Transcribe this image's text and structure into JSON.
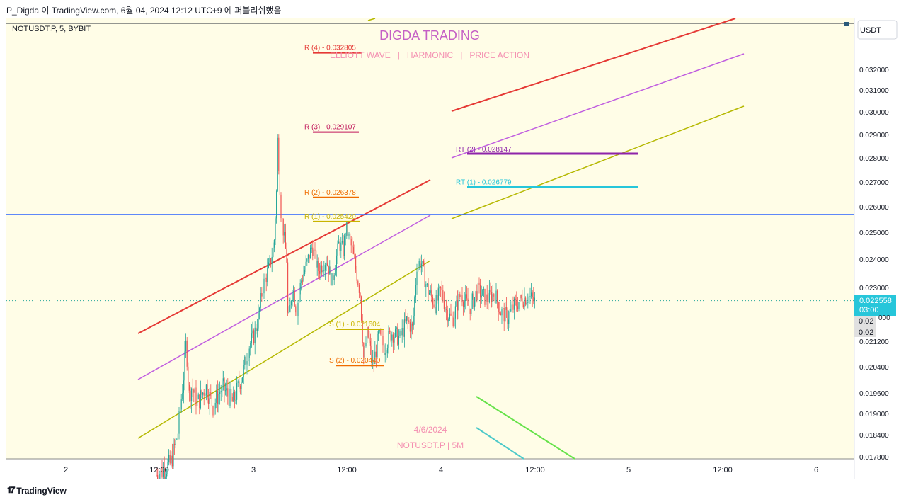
{
  "header": {
    "text": "P_Digda 이 TradingView.com, 6월 04, 2024 12:12 UTC+9 에 퍼블리쉬했음"
  },
  "footer": {
    "brand": "TradingView",
    "logo_icon": "tradingview-logo-icon"
  },
  "chart_data": {
    "type": "candlestick",
    "symbol_label": "NOTUSDT.P, 5, BYBIT",
    "currency_button": "USDT",
    "title": "DIGDA TRADING",
    "subtitle": "ELLIOTT WAVE   |   HARMONIC   |   PRICE ACTION",
    "watermark_date": "4/6/2024",
    "watermark_symbol": "NOTUSDT.P | 5M",
    "y_axis": {
      "ticks": [
        "0.032000",
        "0.031000",
        "0.030000",
        "0.029000",
        "0.028000",
        "0.027000",
        "0.026000",
        "0.025000",
        "0.024000",
        "0.023000",
        "0.021200",
        "0.020400",
        "0.019600",
        "0.019000",
        "0.018400",
        "0.017800"
      ]
    },
    "x_axis": {
      "ticks": [
        "2",
        "12:00",
        "3",
        "12:00",
        "4",
        "12:00",
        "5",
        "12:00",
        "6"
      ]
    },
    "price_label": {
      "value": "0.022558",
      "countdown": "03:00",
      "color": "#26c6da"
    },
    "extra_axis_labels": [
      "0.02",
      "0.02"
    ],
    "horizontal_line": {
      "value": 0.0257,
      "color": "#2962ff"
    },
    "last_price_line": {
      "value": 0.022558
    },
    "levels": [
      {
        "label": "R (4) - 0.032805",
        "value": 0.032805,
        "color": "#e53935"
      },
      {
        "label": "R (3) - 0.029107",
        "value": 0.029107,
        "color": "#c2185b"
      },
      {
        "label": "R (2) - 0.026378",
        "value": 0.026378,
        "color": "#ef6c00"
      },
      {
        "label": "R (1) - 0.025420",
        "value": 0.02542,
        "color": "#c9b400"
      },
      {
        "label": "S (1) - 0.021604",
        "value": 0.021604,
        "color": "#c9b400"
      },
      {
        "label": "S (2) - 0.020440",
        "value": 0.02044,
        "color": "#ef6c00"
      },
      {
        "label": "RT (2) - 0.028147",
        "value": 0.028147,
        "color": "#8e24aa"
      },
      {
        "label": "RT (1) - 0.026779",
        "value": 0.026779,
        "color": "#26c6da"
      }
    ],
    "colors": {
      "bull": "#26a69a",
      "bear": "#ef5350",
      "background": "#fffde7"
    }
  }
}
